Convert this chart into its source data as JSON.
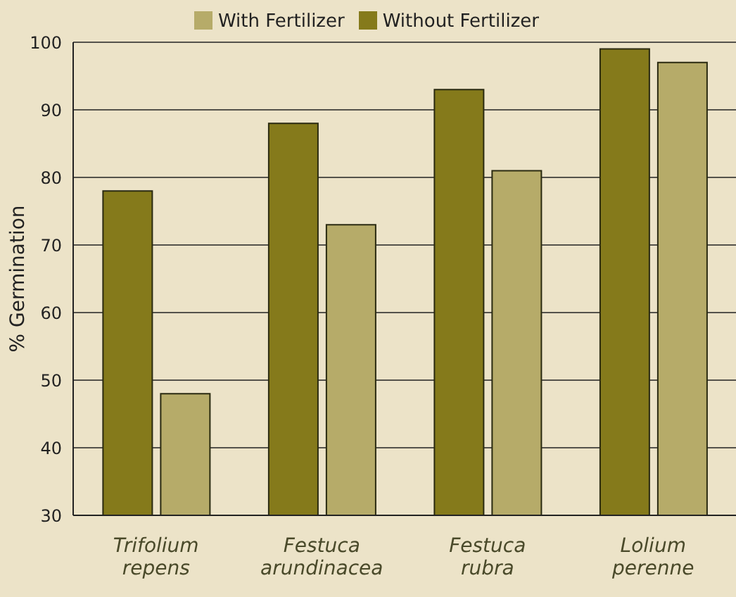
{
  "chart_data": {
    "type": "bar",
    "ylabel": "% Germination",
    "categories": [
      "Trifolium repens",
      "Festuca arundinacea",
      "Festuca rubra",
      "Lolium perenne"
    ],
    "series": [
      {
        "name": "Without Fertilizer",
        "color": "#857a1b",
        "values": [
          78,
          88,
          93,
          99
        ]
      },
      {
        "name": "With Fertilizer",
        "color": "#b6ab69",
        "values": [
          48,
          73,
          81,
          97
        ]
      }
    ],
    "ylim": [
      30,
      100
    ],
    "yticks": [
      30,
      40,
      50,
      60,
      70,
      80,
      90,
      100
    ],
    "grid": "y",
    "legend": "top"
  }
}
